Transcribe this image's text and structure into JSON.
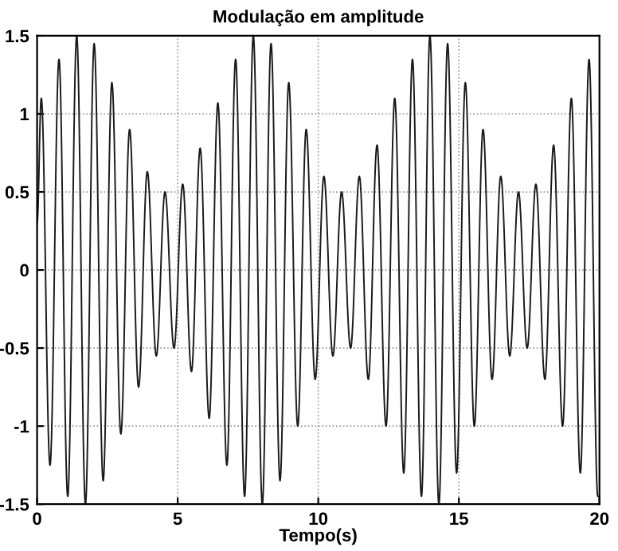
{
  "chart_data": {
    "type": "line",
    "title": "Modulação em amplitude",
    "xlabel": "Tempo(s)",
    "x": [
      0,
      0.15,
      0.46,
      0.78,
      1.09,
      1.41,
      1.72,
      2.03,
      2.35,
      2.66,
      2.98,
      3.29,
      3.61,
      3.92,
      4.24,
      4.55,
      4.87,
      5.18,
      5.49,
      5.8,
      6.12,
      6.43,
      6.75,
      7.06,
      7.38,
      7.69,
      8.01,
      8.32,
      8.64,
      8.95,
      9.27,
      9.57,
      9.89,
      10.2,
      10.52,
      10.83,
      11.15,
      11.46,
      11.78,
      12.09,
      12.41,
      12.72,
      13.04,
      13.35,
      13.67,
      13.97,
      14.29,
      14.6,
      14.92,
      15.23,
      15.55,
      15.86,
      16.18,
      16.49,
      16.81,
      17.12,
      17.43,
      17.74,
      18.06,
      18.37,
      18.69,
      19.0,
      19.32,
      19.63,
      19.94,
      20
    ],
    "series": [
      {
        "color": "#1a1a1a",
        "values": [
          0.3,
          1.1,
          -1.25,
          1.35,
          -1.45,
          1.5,
          -1.5,
          1.45,
          -1.35,
          1.2,
          -1.05,
          0.9,
          -0.75,
          0.63,
          -0.55,
          0.5,
          -0.5,
          0.55,
          -0.65,
          0.78,
          -0.95,
          1.07,
          -1.25,
          1.35,
          -1.45,
          1.5,
          -1.5,
          1.45,
          -1.35,
          1.2,
          -1.0,
          0.9,
          -0.7,
          0.6,
          -0.55,
          0.5,
          -0.5,
          0.6,
          -0.7,
          0.8,
          -1.0,
          1.1,
          -1.3,
          1.35,
          -1.45,
          1.5,
          -1.5,
          1.45,
          -1.3,
          1.2,
          -1.0,
          0.9,
          -0.7,
          0.6,
          -0.55,
          0.5,
          -0.5,
          0.55,
          -0.7,
          0.8,
          -1.0,
          1.1,
          -1.3,
          1.35,
          -1.45,
          -1.45
        ]
      }
    ],
    "xlim": [
      0,
      20
    ],
    "xticks": [
      0,
      5,
      10,
      15,
      20
    ],
    "ylim": [
      -1.5,
      1.5
    ],
    "yticks": [
      -1.5,
      -1,
      -0.5,
      0,
      0.5,
      1,
      1.5
    ],
    "grid": true,
    "line_style": "solid",
    "marker": "none",
    "legend": false
  }
}
